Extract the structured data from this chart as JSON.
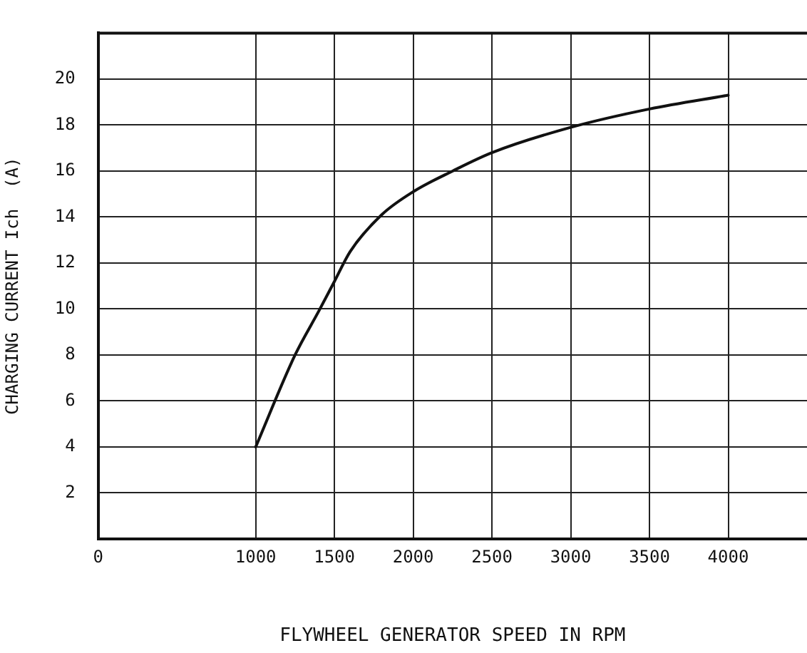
{
  "chart_data": {
    "type": "line",
    "xlabel": "FLYWHEEL GENERATOR SPEED IN RPM",
    "ylabel": "CHARGING CURRENT Ich  (A)",
    "x": [
      1000,
      1250,
      1400,
      1500,
      1600,
      1800,
      2000,
      2250,
      2500,
      3000,
      3500,
      4000
    ],
    "series": [
      {
        "color": "#111111",
        "values": [
          4,
          8,
          9.9,
          11.2,
          12.5,
          14.1,
          15.1,
          16,
          16.8,
          17.9,
          18.7,
          19.3
        ]
      }
    ],
    "xlim": [
      0,
      4500
    ],
    "xticks": [
      0,
      1000,
      1500,
      2000,
      2500,
      3000,
      3500,
      4000
    ],
    "ylim": [
      0,
      22
    ],
    "yticks": [
      {
        "value": 0,
        "label": null
      },
      2,
      4,
      6,
      8,
      10,
      12,
      14,
      16,
      18,
      20
    ],
    "grid": true,
    "legend": false,
    "marker": "none",
    "line_style": "solid"
  }
}
